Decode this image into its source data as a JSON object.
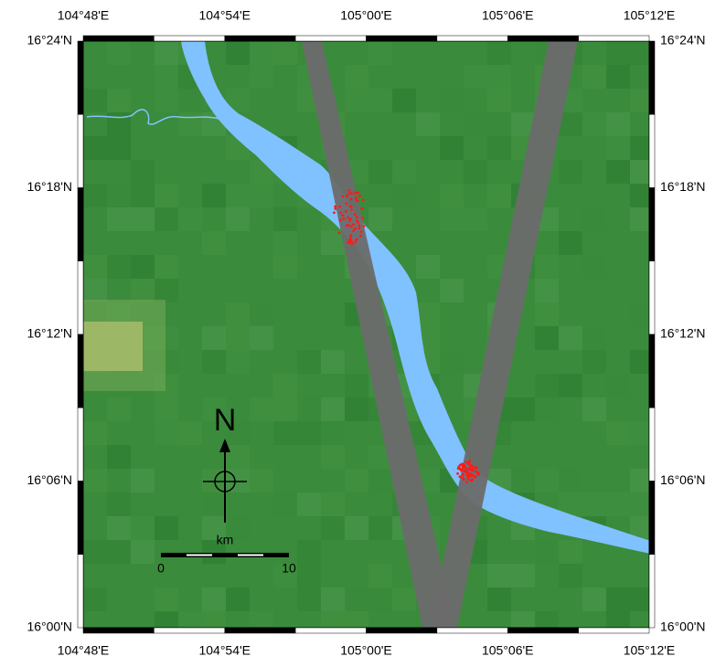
{
  "map": {
    "lon_labels": [
      "104°48'E",
      "104°54'E",
      "105°00'E",
      "105°06'E",
      "105°12'E"
    ],
    "lat_labels": [
      "16°24'N",
      "16°18'N",
      "16°12'N",
      "16°06'N",
      "16°00'N"
    ],
    "north_label": "N",
    "scale_unit": "km",
    "scale_labels": [
      "0",
      "10"
    ]
  }
}
